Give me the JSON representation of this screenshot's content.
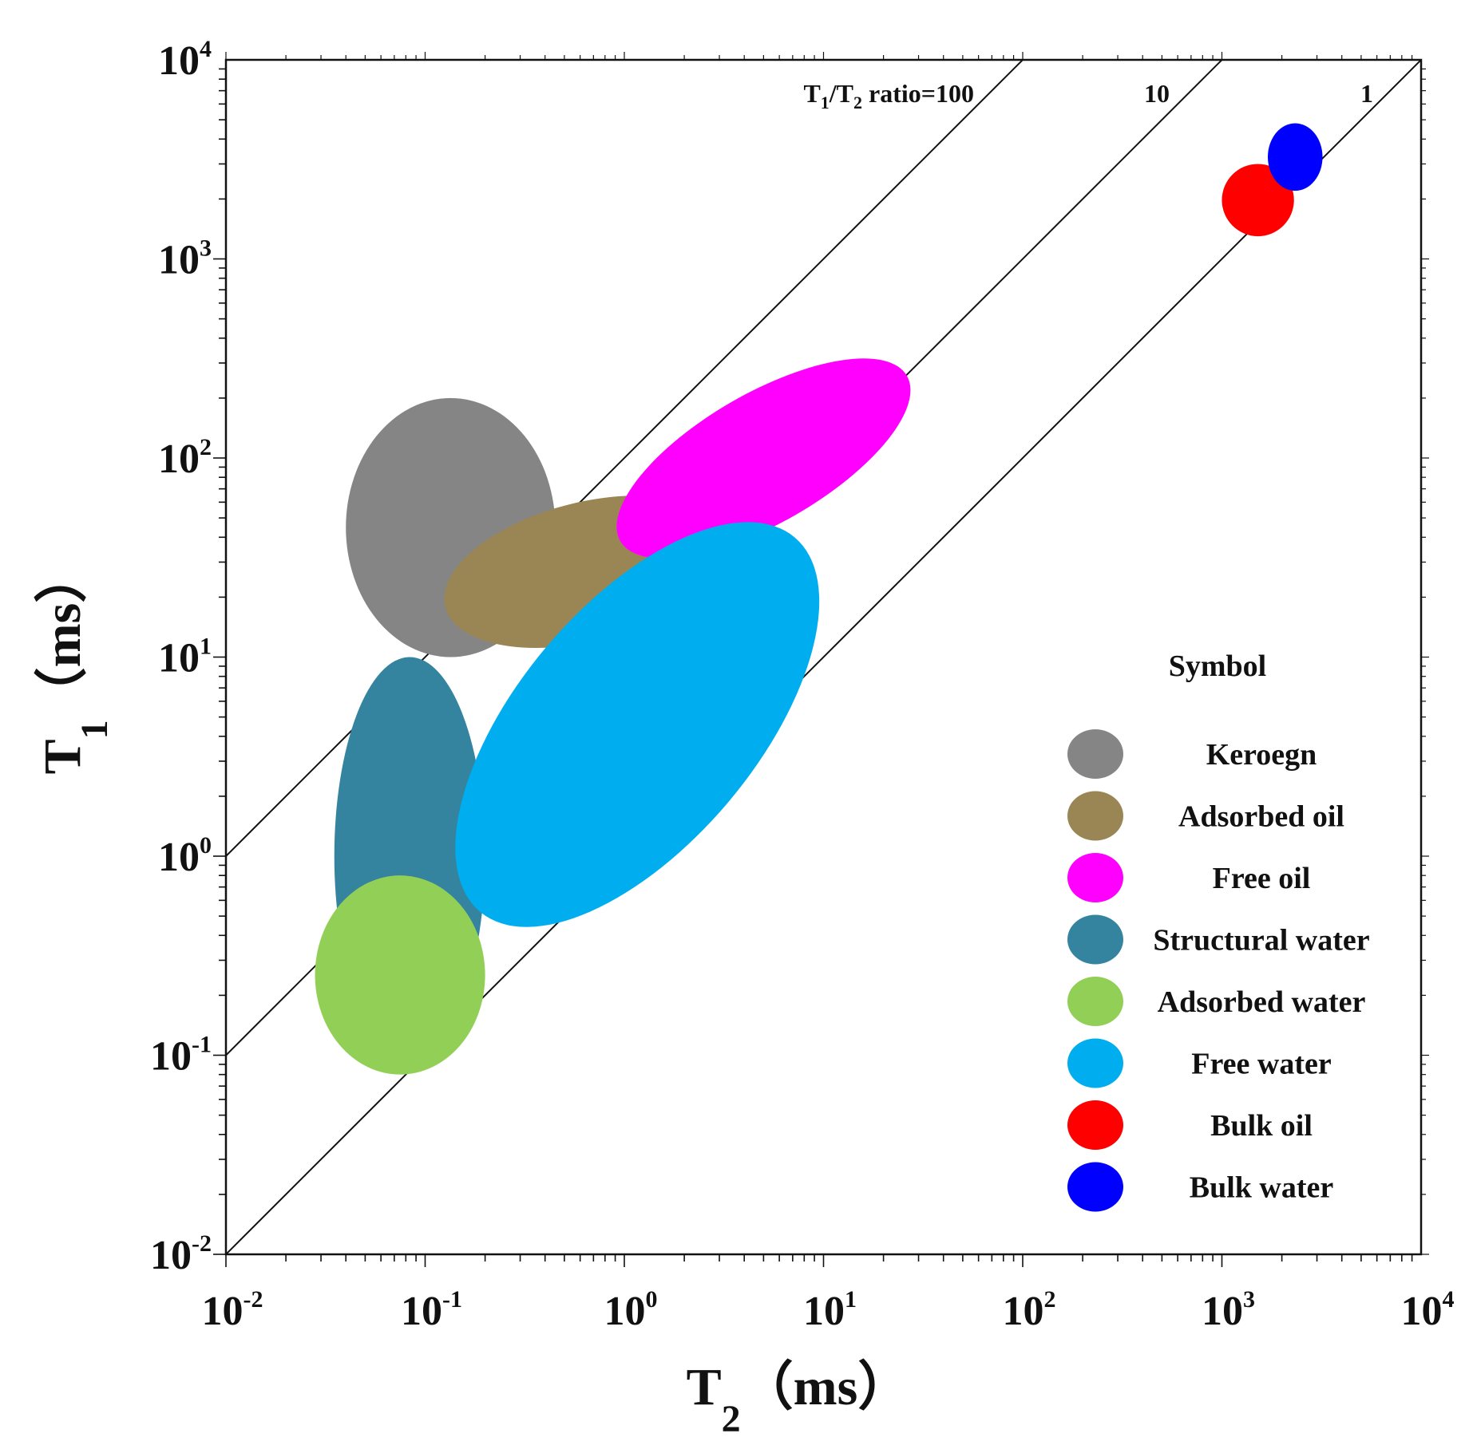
{
  "chart_data": {
    "type": "scatter",
    "title": "",
    "xlabel": {
      "main": "T",
      "sub": "2",
      "unit": "（ms）"
    },
    "ylabel": {
      "main": "T",
      "sub": "1",
      "unit": "（ms）"
    },
    "x_scale": "log",
    "y_scale": "log",
    "xlim": [
      0.01,
      10000
    ],
    "ylim": [
      0.01,
      10000
    ],
    "grid": false,
    "x_ticks": [
      {
        "value": 0.01,
        "base": "10",
        "exp": "-2"
      },
      {
        "value": 0.1,
        "base": "10",
        "exp": "-1"
      },
      {
        "value": 1,
        "base": "10",
        "exp": "0"
      },
      {
        "value": 10,
        "base": "10",
        "exp": "1"
      },
      {
        "value": 100,
        "base": "10",
        "exp": "2"
      },
      {
        "value": 1000,
        "base": "10",
        "exp": "3"
      },
      {
        "value": 10000,
        "base": "10",
        "exp": "4"
      }
    ],
    "y_ticks": [
      {
        "value": 0.01,
        "base": "10",
        "exp": "-2"
      },
      {
        "value": 0.1,
        "base": "10",
        "exp": "-1"
      },
      {
        "value": 1,
        "base": "10",
        "exp": "0"
      },
      {
        "value": 10,
        "base": "10",
        "exp": "1"
      },
      {
        "value": 100,
        "base": "10",
        "exp": "2"
      },
      {
        "value": 1000,
        "base": "10",
        "exp": "3"
      },
      {
        "value": 10000,
        "base": "10",
        "exp": "4"
      }
    ],
    "ratio_lines": [
      {
        "ratio": 100,
        "label_pre": "T",
        "label_sub1": "1",
        "label_mid": "/T",
        "label_sub2": "2",
        "label_post": " ratio=100"
      },
      {
        "ratio": 10,
        "label": "10"
      },
      {
        "ratio": 1,
        "label": "1"
      }
    ],
    "legend": {
      "title": "Symbol",
      "position": "lower-right"
    },
    "regions": [
      {
        "name": "Keroegn",
        "color": "#858585",
        "t2_range": [
          0.04,
          0.45
        ],
        "t1_range": [
          10,
          200
        ],
        "tilt": 0
      },
      {
        "name": "Adsorbed oil",
        "color": "#9A8654",
        "t2_range": [
          0.12,
          3.5
        ],
        "t1_range": [
          12,
          60
        ],
        "tilt": -14
      },
      {
        "name": "Free oil",
        "color": "#FF00FF",
        "t2_range": [
          1.0,
          25
        ],
        "t1_range": [
          33,
          300
        ],
        "tilt": -30
      },
      {
        "name": "Structural water",
        "color": "#35849F",
        "t2_range": [
          0.035,
          0.2
        ],
        "t1_range": [
          0.1,
          10
        ],
        "tilt": 0
      },
      {
        "name": "Adsorbed water",
        "color": "#92CF57",
        "t2_range": [
          0.028,
          0.2
        ],
        "t1_range": [
          0.08,
          0.8
        ],
        "tilt": 0
      },
      {
        "name": "Free water",
        "color": "#00AEEF",
        "t2_range": [
          0.15,
          9
        ],
        "t1_range": [
          0.6,
          35
        ],
        "tilt": -50
      },
      {
        "name": "Bulk oil",
        "color": "#FF0000",
        "t2_range": [
          1000,
          2300
        ],
        "t1_range": [
          1300,
          3000
        ],
        "tilt": 0
      },
      {
        "name": "Bulk water",
        "color": "#0000FF",
        "t2_range": [
          1700,
          3200
        ],
        "t1_range": [
          2200,
          4800
        ],
        "tilt": 0
      }
    ]
  }
}
